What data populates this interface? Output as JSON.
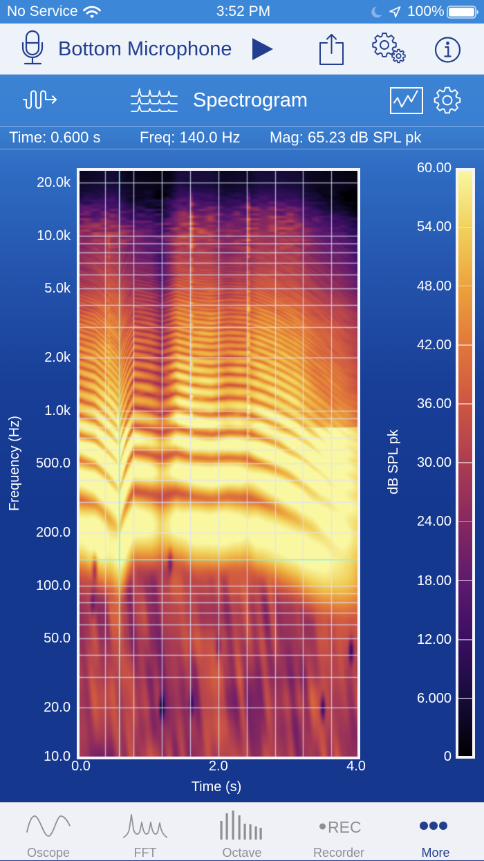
{
  "status_bar": {
    "carrier": "No Service",
    "time": "3:52 PM",
    "battery_percent": "100%",
    "icons": [
      "wifi-icon",
      "moon-icon",
      "location-arrow-icon",
      "battery-icon"
    ]
  },
  "header": {
    "input_source_label": "Bottom Microphone",
    "icons": {
      "input": "microphone-icon",
      "play": "play-icon",
      "share": "share-icon",
      "settings": "settings-gears-icon",
      "info": "info-icon"
    }
  },
  "toolbar": {
    "title": "Spectrogram",
    "icons": {
      "generator": "signal-generator-icon",
      "mode": "spectrogram-icon",
      "plot_options": "chart-icon",
      "settings": "gear-icon"
    }
  },
  "readout": {
    "time": "Time: 0.600 s",
    "freq": "Freq: 140.0 Hz",
    "mag": "Mag: 65.23 dB SPL pk"
  },
  "chart_data": {
    "type": "heatmap",
    "subtype": "spectrogram",
    "title": "Spectrogram",
    "xlabel": "Time (s)",
    "ylabel": "Frequency (Hz)",
    "colorbar_label": "dB SPL pk",
    "x_range": [
      0,
      4.0
    ],
    "y_scale": "log",
    "y_range": [
      10,
      24000
    ],
    "color_range": [
      0,
      60
    ],
    "grid": true,
    "x_grid_step": 0.4,
    "x_ticks": [
      {
        "value": 0,
        "label": "0.0"
      },
      {
        "value": 2,
        "label": "2.0"
      },
      {
        "value": 4,
        "label": "4.0"
      }
    ],
    "y_ticks": [
      {
        "value": 20000,
        "label": "20.0k"
      },
      {
        "value": 10000,
        "label": "10.0k"
      },
      {
        "value": 5000,
        "label": "5.0k"
      },
      {
        "value": 2000,
        "label": "2.0k"
      },
      {
        "value": 1000,
        "label": "1.0k"
      },
      {
        "value": 500,
        "label": "500.0"
      },
      {
        "value": 200,
        "label": "200.0"
      },
      {
        "value": 100,
        "label": "100.0"
      },
      {
        "value": 50,
        "label": "50.0"
      },
      {
        "value": 20,
        "label": "20.0"
      },
      {
        "value": 10,
        "label": "10.0"
      }
    ],
    "color_ticks": [
      {
        "value": 60,
        "label": "60.00"
      },
      {
        "value": 54,
        "label": "54.00"
      },
      {
        "value": 48,
        "label": "48.00"
      },
      {
        "value": 42,
        "label": "42.00"
      },
      {
        "value": 36,
        "label": "36.00"
      },
      {
        "value": 30,
        "label": "30.00"
      },
      {
        "value": 24,
        "label": "24.00"
      },
      {
        "value": 18,
        "label": "18.00"
      },
      {
        "value": 12,
        "label": "12.00"
      },
      {
        "value": 6,
        "label": "6.000"
      },
      {
        "value": 0,
        "label": "0"
      }
    ],
    "colormap_stops": [
      {
        "db": 0,
        "color": "#000004"
      },
      {
        "db": 6,
        "color": "#170c3a"
      },
      {
        "db": 12,
        "color": "#3a0f62"
      },
      {
        "db": 18,
        "color": "#5f1a6e"
      },
      {
        "db": 24,
        "color": "#86285f"
      },
      {
        "db": 30,
        "color": "#ab3d52"
      },
      {
        "db": 36,
        "color": "#cd5542"
      },
      {
        "db": 42,
        "color": "#e0773a"
      },
      {
        "db": 48,
        "color": "#eca23c"
      },
      {
        "db": 54,
        "color": "#f1d05a"
      },
      {
        "db": 60,
        "color": "#f9f7a0"
      }
    ],
    "cursor": {
      "time_s": 0.6,
      "freq_hz": 140.0,
      "mag_db": 65.23
    },
    "estimated_content": {
      "pitch_contour_hz": [
        [
          0,
          210
        ],
        [
          0.25,
          195
        ],
        [
          0.45,
          165
        ],
        [
          0.6,
          140
        ],
        [
          0.72,
          200
        ],
        [
          0.8,
          232
        ],
        [
          1.0,
          225
        ],
        [
          1.2,
          215
        ],
        [
          1.4,
          228
        ],
        [
          1.65,
          215
        ],
        [
          1.9,
          210
        ],
        [
          2.15,
          215
        ],
        [
          2.4,
          212
        ],
        [
          2.6,
          200
        ],
        [
          2.85,
          182
        ],
        [
          3.1,
          160
        ],
        [
          3.35,
          135
        ],
        [
          3.6,
          112
        ],
        [
          3.8,
          96
        ],
        [
          4.0,
          90
        ]
      ],
      "voicing": [
        [
          0,
          0.85
        ],
        [
          0.3,
          1
        ],
        [
          0.7,
          0.9
        ],
        [
          0.8,
          1
        ],
        [
          1.05,
          0.8
        ],
        [
          1.18,
          0.35
        ],
        [
          1.3,
          0.5
        ],
        [
          1.42,
          1
        ],
        [
          2.3,
          1
        ],
        [
          2.42,
          0.7
        ],
        [
          2.55,
          1
        ],
        [
          3.7,
          1
        ],
        [
          3.9,
          0.6
        ],
        [
          4.0,
          0.4
        ]
      ],
      "hf_energy": [
        [
          0,
          0.65
        ],
        [
          0.5,
          0.8
        ],
        [
          0.8,
          0.45
        ],
        [
          1.2,
          0.4
        ],
        [
          1.45,
          0.95
        ],
        [
          1.9,
          0.9
        ],
        [
          2.1,
          0.6
        ],
        [
          2.35,
          0.75
        ],
        [
          2.6,
          0.9
        ],
        [
          3.1,
          0.8
        ],
        [
          3.35,
          0.45
        ],
        [
          3.6,
          0.2
        ],
        [
          4.0,
          0.1
        ]
      ],
      "transients": [
        {
          "t": 0.45,
          "lf": [
            2.6,
            4.0
          ],
          "db": 12
        },
        {
          "t": 0.58,
          "lf": [
            2.1,
            3.0
          ],
          "db": 24
        },
        {
          "t": 1.62,
          "lf": [
            2.7,
            4.25
          ],
          "db": 14
        },
        {
          "t": 2.43,
          "lf": [
            2.8,
            4.25
          ],
          "db": 16
        }
      ],
      "dark_spots": [
        {
          "t": 1.2,
          "f": 20,
          "db": 26
        },
        {
          "t": 1.62,
          "f": 21,
          "db": 18
        },
        {
          "t": 3.48,
          "f": 20,
          "db": 22
        },
        {
          "t": 3.88,
          "f": 42,
          "db": 22
        },
        {
          "t": 0.25,
          "f": 125,
          "db": 18
        },
        {
          "t": 0.22,
          "f": 78,
          "db": 14
        },
        {
          "t": 1.32,
          "f": 135,
          "db": 16
        },
        {
          "t": 2.0,
          "f": 45,
          "db": 12
        }
      ]
    }
  },
  "tab_bar": {
    "active_index": 4,
    "items": [
      {
        "label": "Oscope",
        "icon": "oscilloscope-wave-icon"
      },
      {
        "label": "FFT",
        "icon": "fft-peaks-icon"
      },
      {
        "label": "Octave",
        "icon": "octave-bars-icon"
      },
      {
        "label": "Recorder",
        "icon": "record-icon",
        "icon_text": "REC"
      },
      {
        "label": "More",
        "icon": "more-dots-icon"
      }
    ]
  },
  "colors": {
    "status_bar": "#3d87d8",
    "header_bg": "#eef2f9",
    "accent_navy": "#233e8e",
    "toolbar_blue": "#3c83d4",
    "plot_bg": "#15378e",
    "cursor": "#86eef2",
    "tab_inactive": "#8e8e93",
    "tab_active": "#23408f"
  }
}
